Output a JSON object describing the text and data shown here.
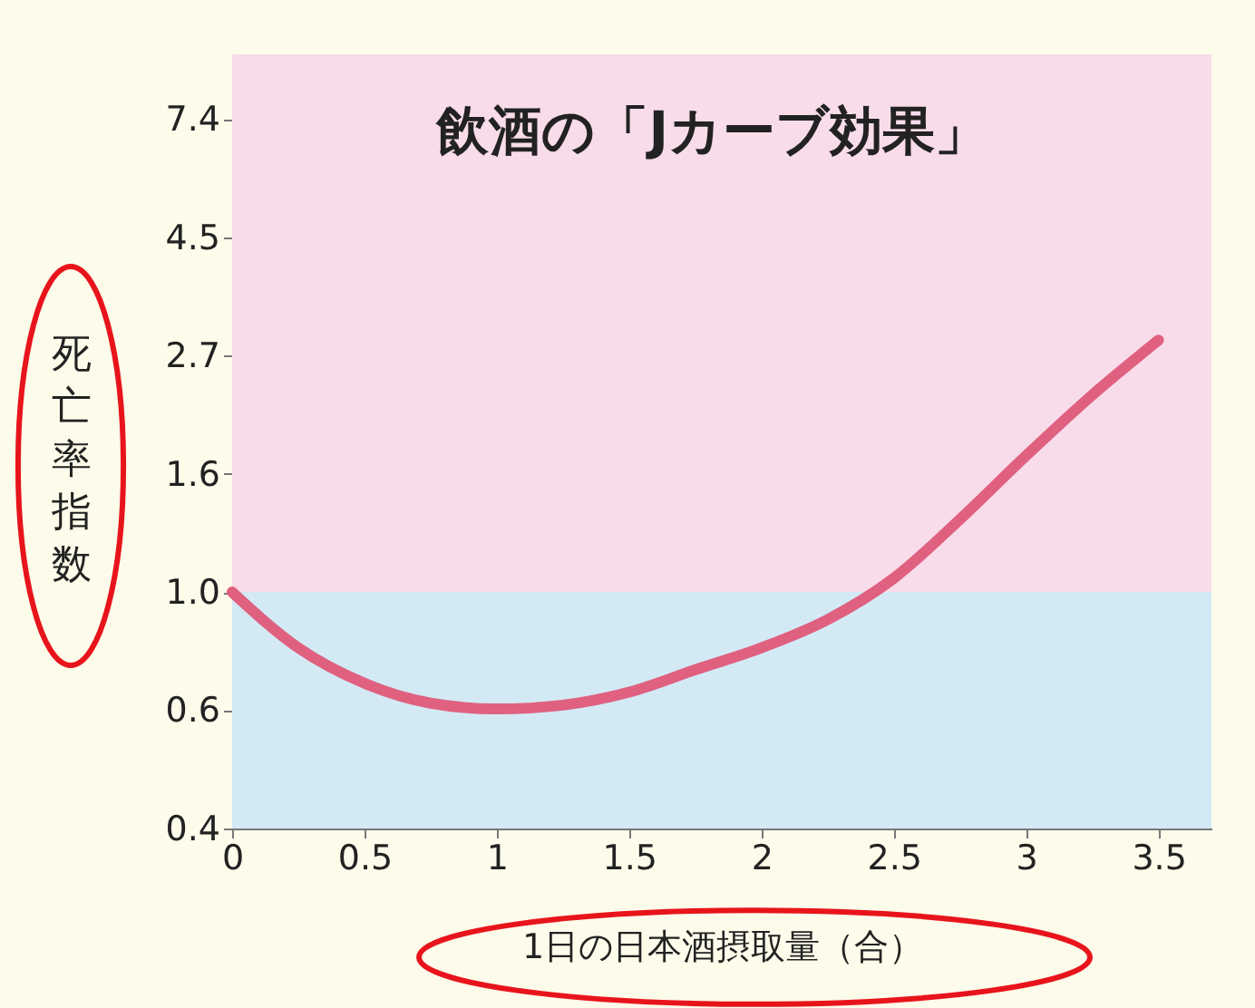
{
  "chart_data": {
    "type": "line",
    "title": "飲酒の「Jカーブ効果」",
    "xlabel": "1日の日本酒摂取量（合）",
    "ylabel": "死亡率指数",
    "x": [
      0,
      0.25,
      0.5,
      0.75,
      1.0,
      1.25,
      1.5,
      1.75,
      2.0,
      2.25,
      2.5,
      2.75,
      3.0,
      3.25,
      3.5
    ],
    "series": [
      {
        "color": "#e06080",
        "values": [
          1.0,
          0.79,
          0.68,
          0.625,
          0.61,
          0.62,
          0.655,
          0.72,
          0.79,
          0.89,
          1.06,
          1.36,
          1.78,
          2.3,
          2.9
        ]
      }
    ],
    "log": true,
    "xlim": [
      0,
      3.7
    ],
    "xticks": [
      0,
      0.5,
      1,
      1.5,
      2,
      2.5,
      3,
      3.5
    ],
    "ylim": [
      0.368,
      9.7
    ],
    "yticks": [
      {
        "value": 0.368,
        "label": "0.4"
      },
      {
        "value": 0.607,
        "label": "0.6"
      },
      {
        "value": 1.0,
        "label": "1.0"
      },
      {
        "value": 1.649,
        "label": "1.6"
      },
      {
        "value": 2.718,
        "label": "2.7"
      },
      {
        "value": 4.482,
        "label": "4.5"
      },
      {
        "value": 7.389,
        "label": "7.4"
      }
    ],
    "bands": [
      {
        "axis": "y",
        "from": 1.0,
        "to": 9.7,
        "color": "#f8dcea"
      },
      {
        "axis": "y",
        "from": 0.368,
        "to": 1.0,
        "color": "#d3eaf5"
      }
    ],
    "grid": false,
    "legend": false,
    "marker": "none",
    "line_style": "solid"
  }
}
